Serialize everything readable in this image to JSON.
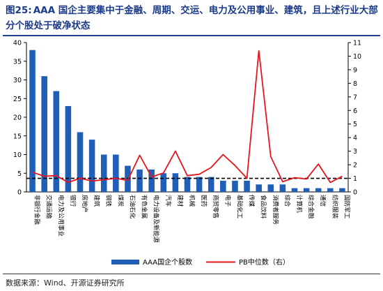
{
  "title": {
    "fig_label": "图25:",
    "text": "AAA 国企主要集中于金融、周期、交运、电力及公用事业、建筑，且上述行业大部分个股处于破净状态"
  },
  "source": "数据来源：Wind、开源证券研究所",
  "colors": {
    "bar": "#1f5fb8",
    "line": "#e8141a",
    "ref": "#000000",
    "title": "#1a3a8a"
  },
  "chart_data": {
    "type": "bar",
    "categories": [
      "非银行金融",
      "交通运输",
      "电力及公用事业",
      "银行",
      "房地产",
      "建筑",
      "钢铁",
      "煤炭",
      "石油石化",
      "有色金属",
      "电力设备及新能源",
      "汽车",
      "建材",
      "机械",
      "医药",
      "商贸零售",
      "电子",
      "基础化工",
      "传媒",
      "食品饮料",
      "消费者服务",
      "综合",
      "计算机",
      "综合金融",
      "通信",
      "纺织服装",
      "国防军工"
    ],
    "series": [
      {
        "name": "AAA国企个股数",
        "axis": "left",
        "type": "bar",
        "values": [
          38,
          31,
          27,
          23,
          16,
          14,
          10,
          10,
          7,
          6,
          6,
          5,
          5,
          4,
          4,
          4,
          3,
          3,
          3,
          2,
          2,
          2,
          1,
          1,
          1,
          1,
          1
        ]
      },
      {
        "name": "PB中位数（右）",
        "axis": "right",
        "type": "line",
        "values": [
          1.45,
          1.15,
          1.2,
          0.7,
          1.0,
          0.8,
          0.9,
          1.0,
          0.85,
          2.7,
          1.1,
          1.4,
          3.0,
          1.2,
          1.3,
          1.8,
          2.75,
          1.95,
          1.0,
          10.4,
          2.6,
          0.75,
          1.05,
          0.95,
          2.05,
          0.7,
          1.15
        ]
      }
    ],
    "reference_line": {
      "axis": "right",
      "value": 1.0
    },
    "ylim_left": [
      0,
      40
    ],
    "yticks_left": [
      0,
      5,
      10,
      15,
      20,
      25,
      30,
      35,
      40
    ],
    "ylim_right": [
      0,
      11
    ],
    "yticks_right": [
      0,
      1,
      2,
      3,
      4,
      5,
      6,
      7,
      8,
      9,
      10,
      11
    ],
    "legend": {
      "placement": "bottom"
    }
  }
}
